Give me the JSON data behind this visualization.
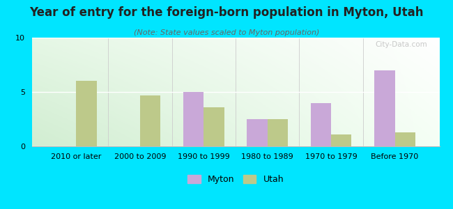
{
  "title": "Year of entry for the foreign-born population in Myton, Utah",
  "subtitle": "(Note: State values scaled to Myton population)",
  "categories": [
    "2010 or later",
    "2000 to 2009",
    "1990 to 1999",
    "1980 to 1989",
    "1970 to 1979",
    "Before 1970"
  ],
  "myton_values": [
    0,
    0,
    5,
    2.5,
    4,
    7
  ],
  "utah_values": [
    6,
    4.7,
    3.6,
    2.5,
    1.1,
    1.3
  ],
  "myton_color": "#c9a8d8",
  "utah_color": "#bdc98a",
  "background_color": "#00e5ff",
  "ylim": [
    0,
    10
  ],
  "yticks": [
    0,
    5,
    10
  ],
  "bar_width": 0.32,
  "watermark": "City-Data.com",
  "legend_myton": "Myton",
  "legend_utah": "Utah",
  "separator_color": "#cccccc",
  "grid_color": "#d0d0d0",
  "title_fontsize": 12,
  "subtitle_fontsize": 8,
  "tick_fontsize": 8
}
